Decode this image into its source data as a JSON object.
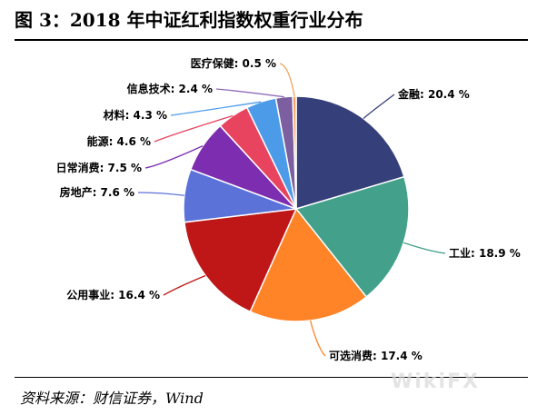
{
  "figure": {
    "title": "图 3：2018 年中证红利指数权重行业分布",
    "source": "资料来源：财信证券，Wind",
    "watermark": "WikiFX"
  },
  "chart_data": {
    "type": "pie",
    "title": "",
    "slices": [
      {
        "name": "金融",
        "value": 20.4,
        "label": "金融: 20.4 %",
        "color": "#353F79",
        "line_color": "#353F79"
      },
      {
        "name": "工业",
        "value": 18.9,
        "label": "工业: 18.9 %",
        "color": "#43A08A",
        "line_color": "#43A08A"
      },
      {
        "name": "可选消费",
        "value": 17.4,
        "label": "可选消费: 17.4 %",
        "color": "#FF8427",
        "line_color": "#FF8427"
      },
      {
        "name": "公用事业",
        "value": 16.4,
        "label": "公用事业: 16.4 %",
        "color": "#BF1717",
        "line_color": "#BF1717"
      },
      {
        "name": "房地产",
        "value": 7.6,
        "label": "房地产: 7.6 %",
        "color": "#5B72D9",
        "line_color": "#5B72D9"
      },
      {
        "name": "日常消费",
        "value": 7.5,
        "label": "日常消费: 7.5 %",
        "color": "#7D2EB0",
        "line_color": "#7D2EB0"
      },
      {
        "name": "能源",
        "value": 4.6,
        "label": "能源: 4.6 %",
        "color": "#E8435F",
        "line_color": "#E8435F"
      },
      {
        "name": "材料",
        "value": 4.3,
        "label": "材料: 4.3 %",
        "color": "#4C9BE8",
        "line_color": "#4C9BE8"
      },
      {
        "name": "信息技术",
        "value": 2.4,
        "label": "信息技术: 2.4 %",
        "color": "#7B5FA0",
        "line_color": "#8E6BB8"
      },
      {
        "name": "医疗保健",
        "value": 0.5,
        "label": "医疗保健: 0.5 %",
        "color": "#F4A05A",
        "line_color": "#F4A05A"
      }
    ],
    "start_angle_deg": 90,
    "direction": "clockwise",
    "legend": "none"
  }
}
